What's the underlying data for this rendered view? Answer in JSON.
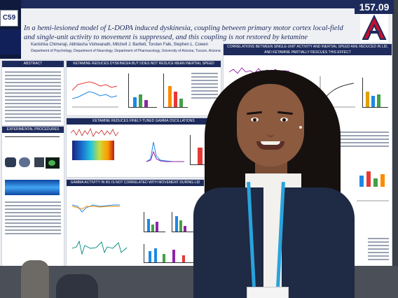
{
  "poster": {
    "id_tag": "C59",
    "number": "157.09",
    "title": "In a hemi-lesioned model of L-DOPA induced dyskinesia, coupling between primary motor cortex local-field and single-unit activity to movement is suppressed, and this coupling is not restored by ketamine",
    "authors": "Kanishka Chimeraji, Abhilasha Vishwanath, Mitchell J. Bartlett, Torsten Falk, Stephen L. Cowen",
    "affiliations": "Department of Psychology, Department of Neurology, Department of Pharmacology, University of Arizona, Tucson, Arizona",
    "panels": {
      "abstract": "ABSTRACT",
      "experimental_procedures": "EXPERIMENTAL PROCEDURES",
      "ketamine_dyskinesia": "KETAMINE REDUCES DYSKINESIA BUT DOES NOT REDUCE MEAN INERTIAL SPEED",
      "gamma_oscillations": "KETAMINE REDUCES FINELY-TUNED GAMMA OSCILLATIONS",
      "gamma_movement": "GAMMA ACTIVITY IN M1 IS NOT CORRELATED WITH MOVEMENT DURING LID",
      "single_unit": "CORRELATIONS BETWEEN SINGLE-UNIT ACTIVITY AND INERTIAL SPEED ARE REDUCED IN LID, AND KETAMINE PARTIALLY RESCUES THIS EFFECT"
    }
  },
  "colors": {
    "header_navy": "#1d2a5c",
    "jacket": "#1f2a44",
    "lanyard": "#29a3dc",
    "hair": "#16110f",
    "skin": "#8b5a3f"
  }
}
